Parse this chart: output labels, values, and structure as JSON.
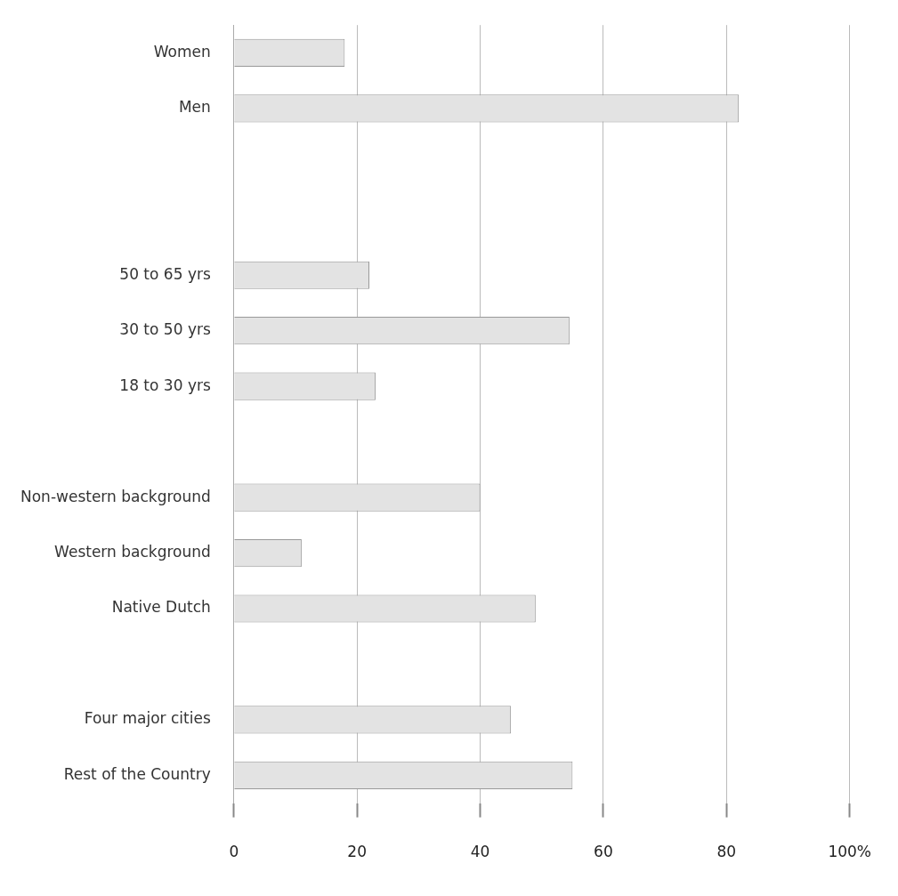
{
  "chart_data": {
    "type": "bar",
    "orientation": "horizontal",
    "categories": [
      "Women",
      "Men",
      null,
      null,
      "50 to 65 yrs",
      "30 to 50 yrs",
      "18 to 30 yrs",
      null,
      "Non-western background",
      "Western background",
      "Native Dutch",
      null,
      "Four major cities",
      "Rest of the Country"
    ],
    "values": [
      18,
      82,
      null,
      null,
      22,
      54.5,
      23,
      null,
      40,
      11,
      49,
      null,
      45,
      55
    ],
    "color": "#e3e3e3",
    "xlim": [
      0,
      100
    ],
    "xticks": [
      0,
      20,
      40,
      60,
      80,
      {
        "value": 100,
        "label": "100%"
      }
    ],
    "grid": "x"
  }
}
